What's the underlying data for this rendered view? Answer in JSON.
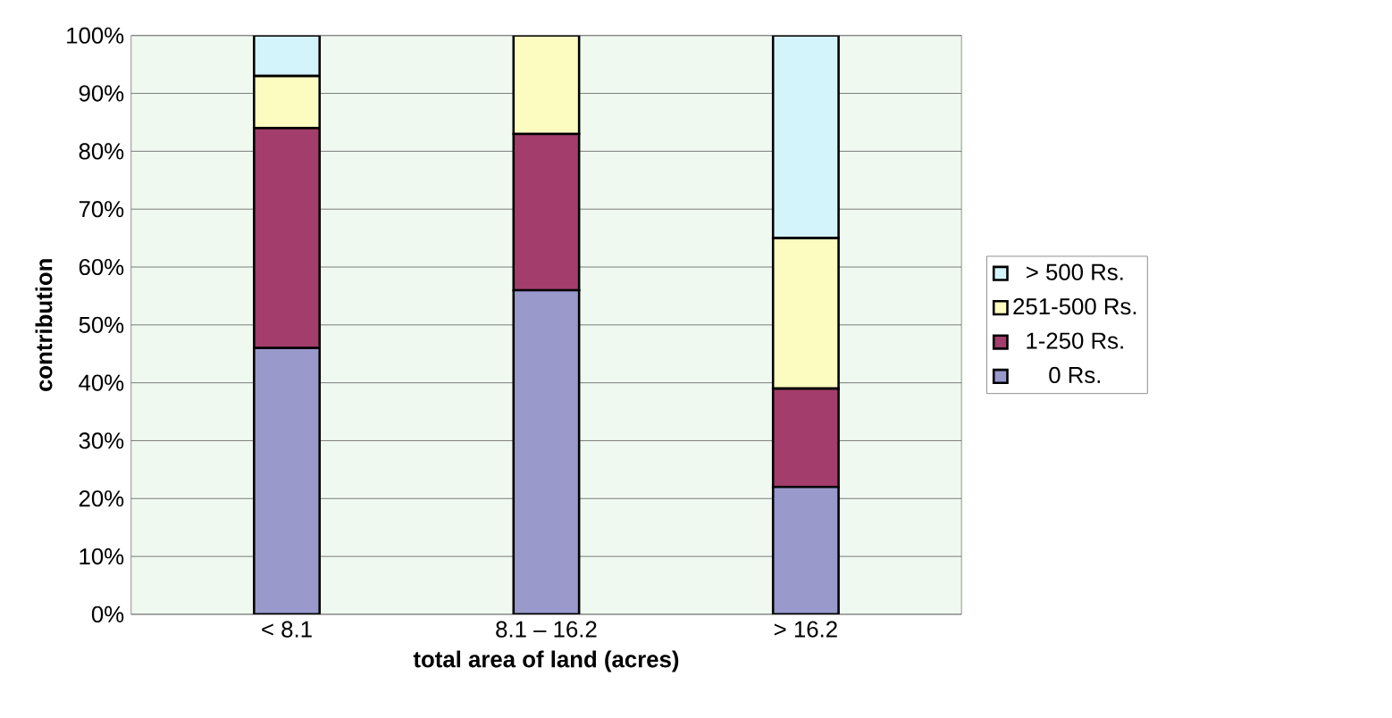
{
  "chart_data": {
    "type": "bar",
    "stacked": true,
    "xlabel": "total area of land (acres)",
    "ylabel": "contribution",
    "categories": [
      "< 8.1",
      "8.1 – 16.2",
      "> 16.2"
    ],
    "series": [
      {
        "name": "0 Rs.",
        "color": "#9999cc",
        "values": [
          46,
          56,
          22
        ]
      },
      {
        "name": "1-250 Rs.",
        "color": "#a33d6b",
        "values": [
          38,
          27,
          17
        ]
      },
      {
        "name": "251-500 Rs.",
        "color": "#fcfcc0",
        "values": [
          9,
          17,
          26
        ]
      },
      {
        "name": "> 500 Rs.",
        "color": "#d4f4fb",
        "values": [
          7,
          0,
          35
        ]
      }
    ],
    "ylim": [
      0,
      100
    ],
    "yticks": [
      {
        "value": 0,
        "label": "0%"
      },
      {
        "value": 10,
        "label": "10%"
      },
      {
        "value": 20,
        "label": "20%"
      },
      {
        "value": 30,
        "label": "30%"
      },
      {
        "value": 40,
        "label": "40%"
      },
      {
        "value": 50,
        "label": "50%"
      },
      {
        "value": 60,
        "label": "60%"
      },
      {
        "value": 70,
        "label": "70%"
      },
      {
        "value": 80,
        "label": "80%"
      },
      {
        "value": 90,
        "label": "90%"
      },
      {
        "value": 100,
        "label": "100%"
      }
    ],
    "grid": "y",
    "legend": "right"
  }
}
